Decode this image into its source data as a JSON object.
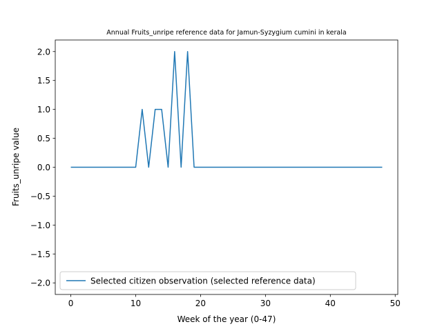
{
  "chart_data": {
    "type": "line",
    "title": "Annual Fruits_unripe reference data for Jamun-Syzygium cumini in kerala",
    "xlabel": "Week of the year (0-47)",
    "ylabel": "Fruits_unripe value",
    "xlim": [
      -2.4,
      50.4
    ],
    "ylim": [
      -2.2,
      2.2
    ],
    "xticks": [
      0,
      10,
      20,
      30,
      40,
      50
    ],
    "yticks": [
      -2.0,
      -1.5,
      -1.0,
      -0.5,
      0.0,
      0.5,
      1.0,
      1.5,
      2.0
    ],
    "ytick_labels": [
      "−2.0",
      "−1.5",
      "−1.0",
      "−0.5",
      "0.0",
      "0.5",
      "1.0",
      "1.5",
      "2.0"
    ],
    "grid": false,
    "legend_position": "lower-left",
    "series": [
      {
        "name": "Selected citizen observation (selected reference data)",
        "color": "#1f77b4",
        "x": [
          0,
          1,
          2,
          3,
          4,
          5,
          6,
          7,
          8,
          9,
          10,
          11,
          12,
          13,
          14,
          15,
          16,
          17,
          18,
          19,
          20,
          21,
          22,
          23,
          24,
          25,
          26,
          27,
          28,
          29,
          30,
          31,
          32,
          33,
          34,
          35,
          36,
          37,
          38,
          39,
          40,
          41,
          42,
          43,
          44,
          45,
          46,
          47,
          48
        ],
        "y": [
          0,
          0,
          0,
          0,
          0,
          0,
          0,
          0,
          0,
          0,
          0,
          1,
          0,
          1,
          1,
          0,
          2,
          0,
          2,
          0,
          0,
          0,
          0,
          0,
          0,
          0,
          0,
          0,
          0,
          0,
          0,
          0,
          0,
          0,
          0,
          0,
          0,
          0,
          0,
          0,
          0,
          0,
          0,
          0,
          0,
          0,
          0,
          0,
          0
        ]
      }
    ]
  }
}
